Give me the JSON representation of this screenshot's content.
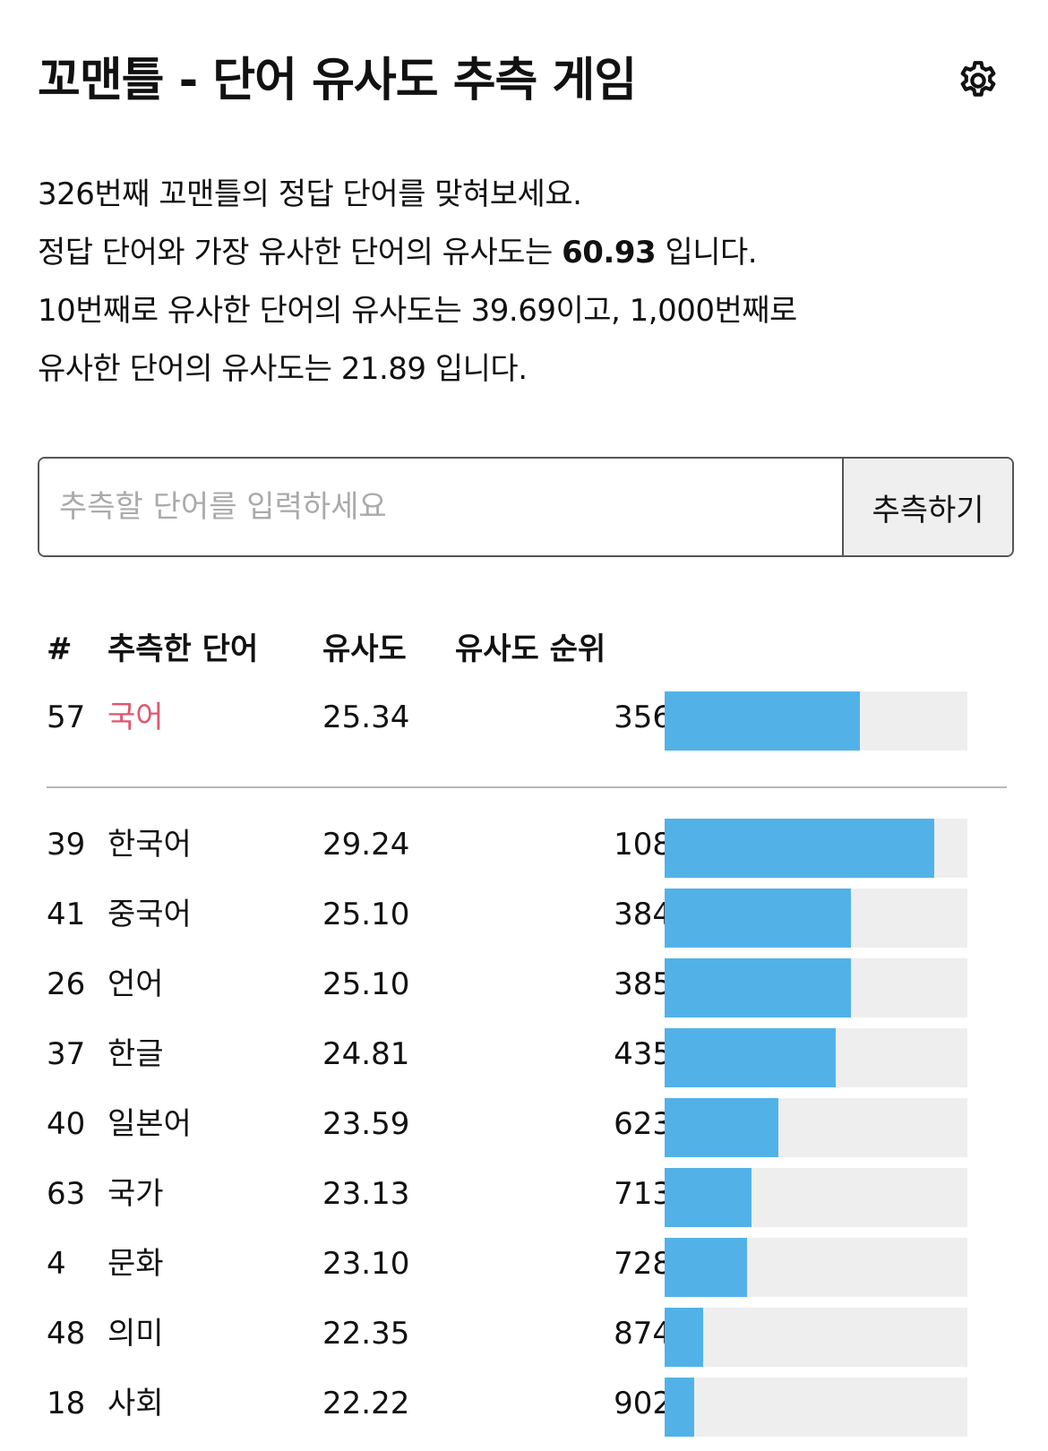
{
  "header": {
    "title": "꼬맨틀 - 단어 유사도 추측 게임",
    "settings_icon": "gear-icon"
  },
  "intro": {
    "line1": "326번째 꼬맨틀의 정답 단어를 맞혀보세요.",
    "line2_prefix": "정답 단어와 가장 유사한 단어의 유사도는 ",
    "line2_value": "60.93",
    "line2_suffix": " 입니다.",
    "line3": "10번째로 유사한 단어의 유사도는 39.69이고, 1,000번째로",
    "line4": "유사한 단어의 유사도는 21.89 입니다."
  },
  "guess_form": {
    "placeholder": "추측할 단어를 입력하세요",
    "value": "",
    "button_label": "추측하기"
  },
  "table": {
    "headers": {
      "num": "#",
      "word": "추측한 단어",
      "similarity": "유사도",
      "rank": "유사도 순위"
    },
    "latest": {
      "num": "57",
      "word": "국어",
      "similarity": "25.34",
      "rank": "356",
      "bar_fill": 0.644
    },
    "rows": [
      {
        "num": "39",
        "word": "한국어",
        "similarity": "29.24",
        "rank": "108",
        "bar_fill": 0.892
      },
      {
        "num": "41",
        "word": "중국어",
        "similarity": "25.10",
        "rank": "384",
        "bar_fill": 0.616
      },
      {
        "num": "26",
        "word": "언어",
        "similarity": "25.10",
        "rank": "385",
        "bar_fill": 0.615
      },
      {
        "num": "37",
        "word": "한글",
        "similarity": "24.81",
        "rank": "435",
        "bar_fill": 0.565
      },
      {
        "num": "40",
        "word": "일본어",
        "similarity": "23.59",
        "rank": "623",
        "bar_fill": 0.377
      },
      {
        "num": "63",
        "word": "국가",
        "similarity": "23.13",
        "rank": "713",
        "bar_fill": 0.287
      },
      {
        "num": "4",
        "word": "문화",
        "similarity": "23.10",
        "rank": "728",
        "bar_fill": 0.272
      },
      {
        "num": "48",
        "word": "의미",
        "similarity": "22.35",
        "rank": "874",
        "bar_fill": 0.126
      },
      {
        "num": "18",
        "word": "사회",
        "similarity": "22.22",
        "rank": "902",
        "bar_fill": 0.098
      }
    ]
  },
  "colors": {
    "bar_fill": "#52b2e8",
    "bar_track": "#eeeeee",
    "latest_word": "#e0556e"
  }
}
